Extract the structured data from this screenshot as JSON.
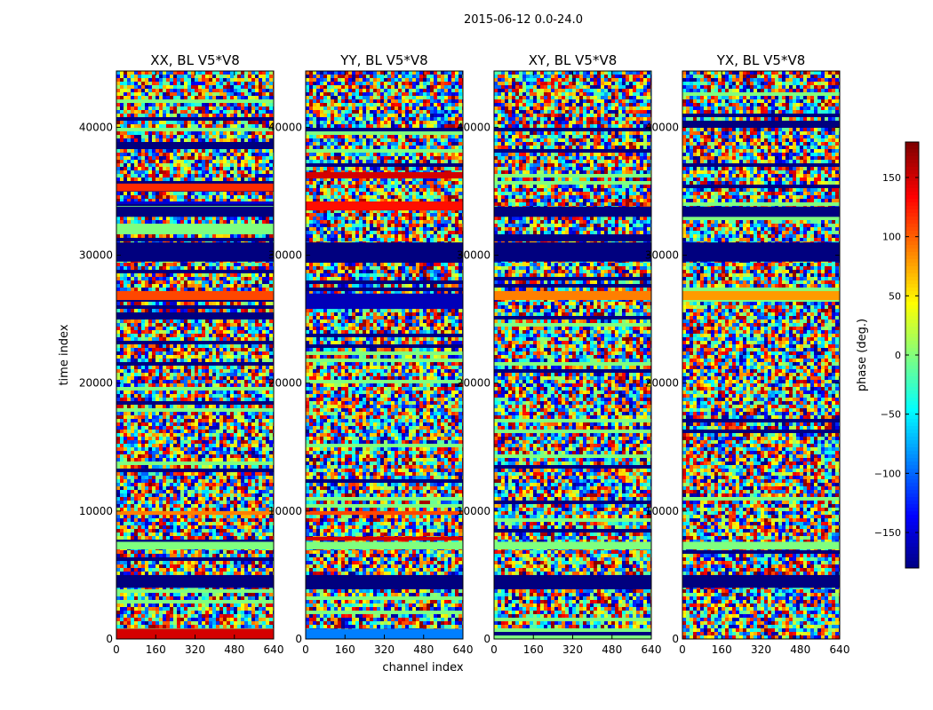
{
  "figure": {
    "suptitle": "2015-06-12 0.0-24.0"
  },
  "chart_data": {
    "type": "heatmap",
    "description_values_are": "visibility phase in degrees per (time index, channel index) cell",
    "xlabel": "channel index",
    "ylabel": "time index",
    "x_ticks": [
      0,
      160,
      320,
      480,
      640
    ],
    "y_ticks": [
      0,
      10000,
      20000,
      30000,
      40000
    ],
    "xlim": [
      0,
      640
    ],
    "ylim": [
      0,
      44400
    ],
    "colorbar": {
      "label": "phase (deg.)",
      "ticks": [
        150,
        100,
        50,
        0,
        -50,
        -100,
        -150
      ],
      "range": [
        -180,
        180
      ],
      "colormap": "jet",
      "colors": [
        "#00007f",
        "#0000ff",
        "#007fff",
        "#00ffff",
        "#7fff7f",
        "#ffff00",
        "#ff7f00",
        "#ff0000",
        "#7f0000"
      ]
    },
    "panels": [
      {
        "title": "XX, BL V5*V8",
        "band_y": [
          [
            0,
            800,
            150
          ],
          [
            4000,
            5000,
            -180
          ],
          [
            7000,
            7600,
            0
          ],
          [
            9700,
            10000,
            90
          ],
          [
            26500,
            27200,
            110
          ],
          [
            29500,
            31000,
            -180
          ],
          [
            33000,
            33800,
            -180
          ],
          [
            34000,
            34200,
            -150
          ],
          [
            35000,
            35600,
            120
          ]
        ]
      },
      {
        "title": "YY, BL V5*V8",
        "band_y": [
          [
            0,
            800,
            -90
          ],
          [
            4000,
            5000,
            -180
          ],
          [
            7000,
            7600,
            0
          ],
          [
            7700,
            8000,
            150
          ],
          [
            9700,
            10000,
            110
          ],
          [
            25800,
            27000,
            -160
          ],
          [
            29500,
            31000,
            -180
          ],
          [
            33500,
            34200,
            130
          ],
          [
            36000,
            36500,
            150
          ]
        ]
      },
      {
        "title": "XY, BL V5*V8",
        "band_y": [
          [
            4000,
            5000,
            -180
          ],
          [
            7000,
            7600,
            0
          ],
          [
            26500,
            27200,
            90
          ],
          [
            29500,
            31000,
            -180
          ],
          [
            33000,
            33800,
            -180
          ]
        ]
      },
      {
        "title": "YX, BL V5*V8",
        "band_y": [
          [
            4000,
            5000,
            -180
          ],
          [
            7000,
            7600,
            0
          ],
          [
            26500,
            27200,
            80
          ],
          [
            29500,
            31000,
            -180
          ],
          [
            33000,
            33800,
            -180
          ]
        ]
      }
    ]
  }
}
